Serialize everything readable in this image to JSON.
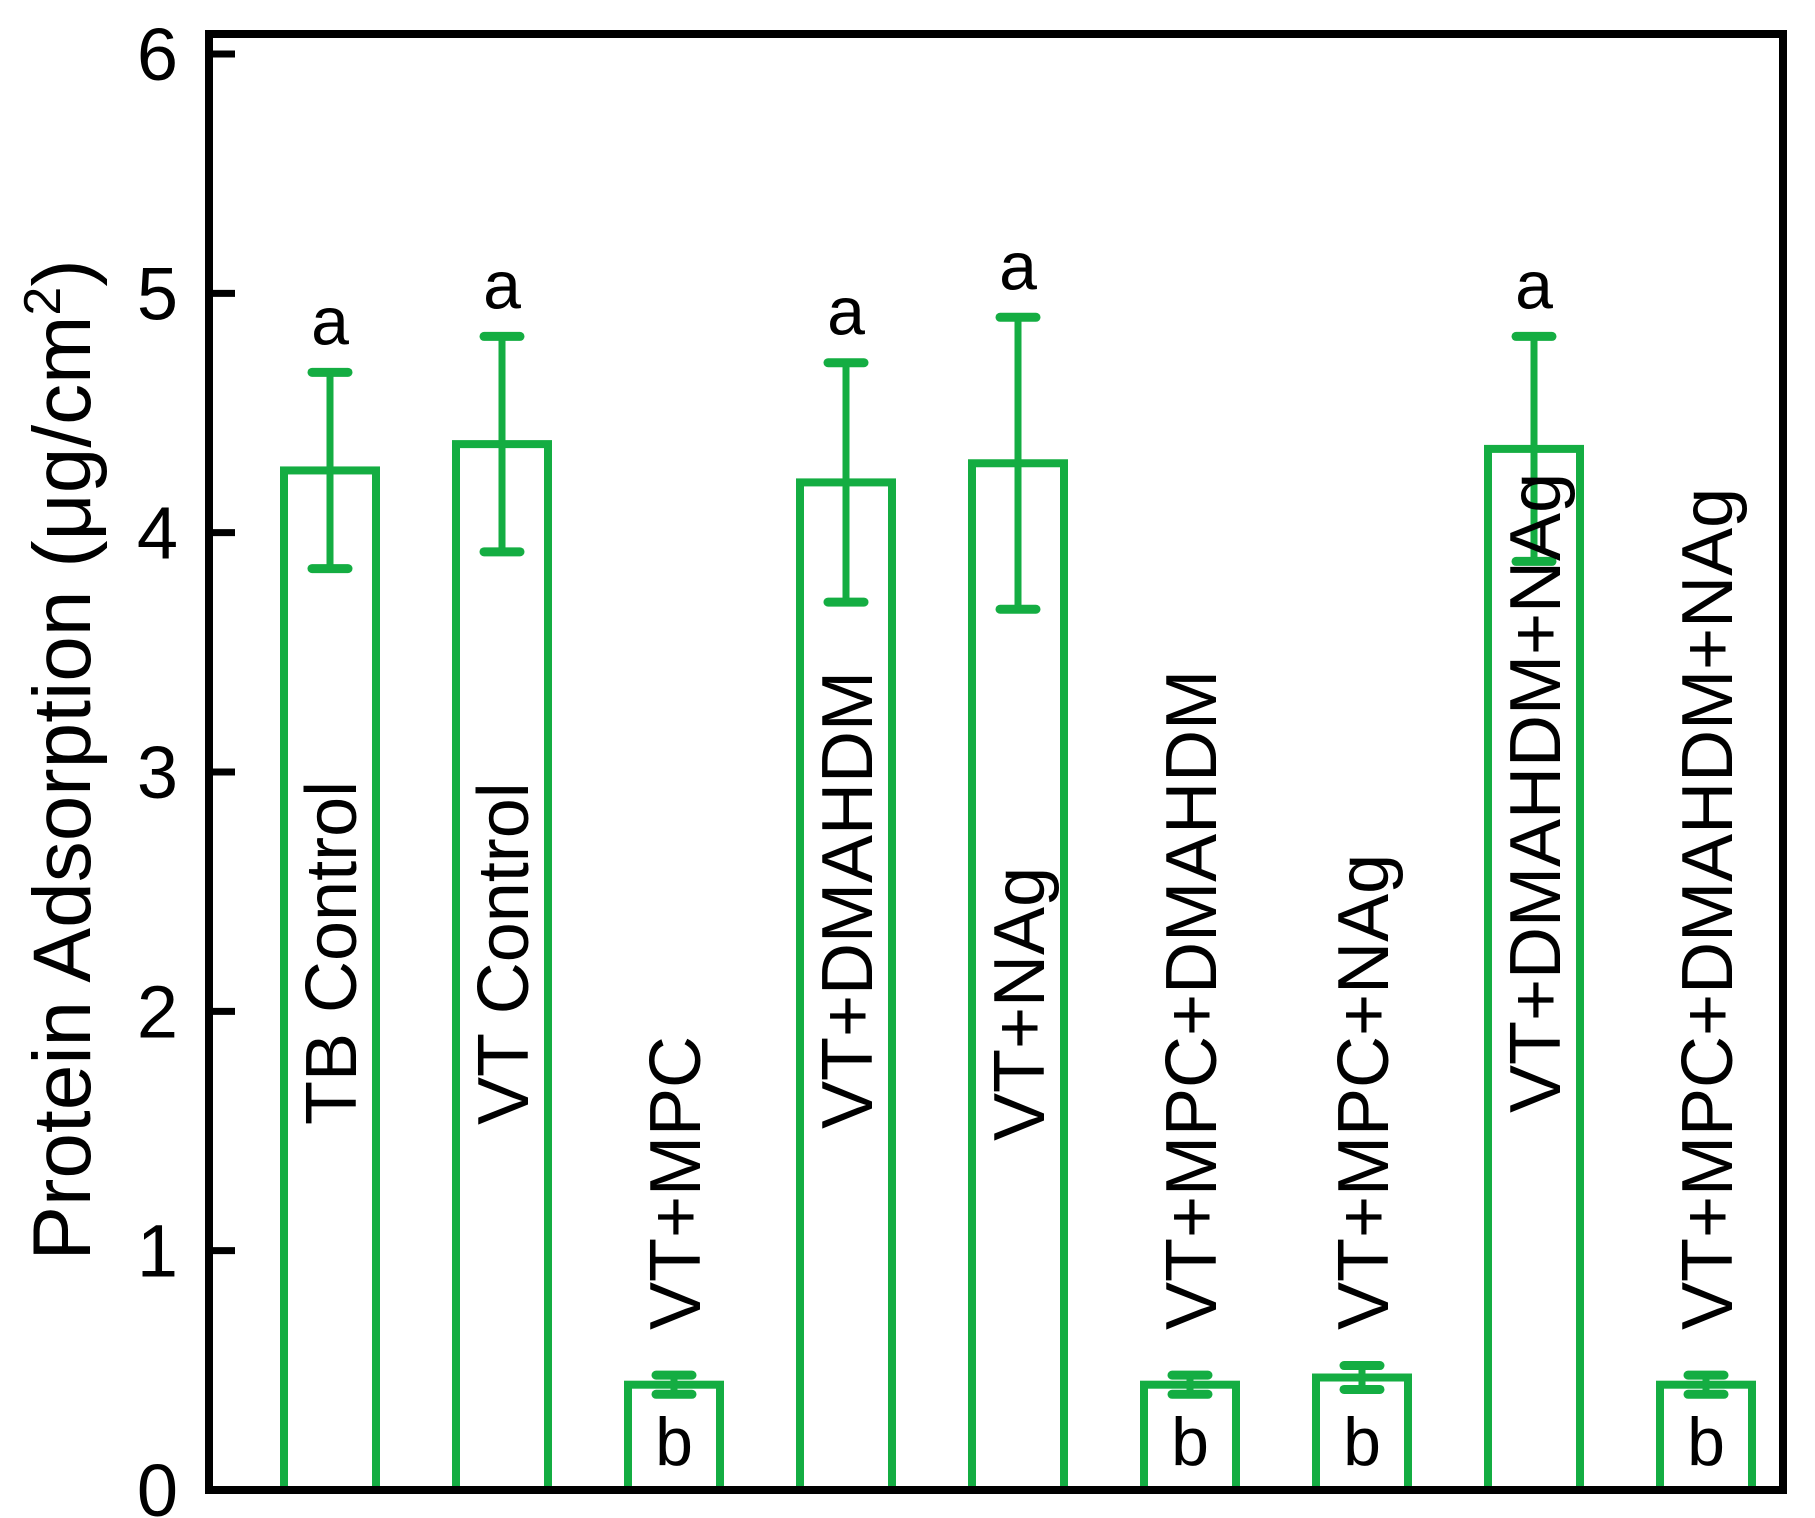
{
  "chart_data": {
    "type": "bar",
    "title": "",
    "xlabel": "",
    "ylabel": "Protein Adsorption (μg/cm²)",
    "ylabel_parts": {
      "main": "Protein Adsorption (μg/cm",
      "sup": "2",
      "close": ")"
    },
    "ylim": [
      0,
      6
    ],
    "yticks": [
      0,
      1,
      2,
      3,
      4,
      5,
      6
    ],
    "ytick_labels": [
      "0",
      "1",
      "2",
      "3",
      "4",
      "5",
      "6"
    ],
    "grid": false,
    "legend": "none",
    "categories": [
      "TB Control",
      "VT Control",
      "VT+MPC",
      "VT+DMAHDM",
      "VT+NAg",
      "VT+MPC+DMAHDM",
      "VT+MPC+NAg",
      "VT+DMAHDM+NAg",
      "VT+MPC+DMAHDM+NAg"
    ],
    "values": [
      4.26,
      4.37,
      0.44,
      4.21,
      4.29,
      0.44,
      0.47,
      4.35,
      0.44
    ],
    "errors": [
      0.41,
      0.45,
      0.04,
      0.5,
      0.61,
      0.04,
      0.05,
      0.47,
      0.04
    ],
    "significance": [
      "a",
      "a",
      "b",
      "a",
      "a",
      "b",
      "b",
      "a",
      "b"
    ],
    "colors": {
      "bar": "#14ad42",
      "axis": "#000000",
      "text": "#000000"
    }
  }
}
